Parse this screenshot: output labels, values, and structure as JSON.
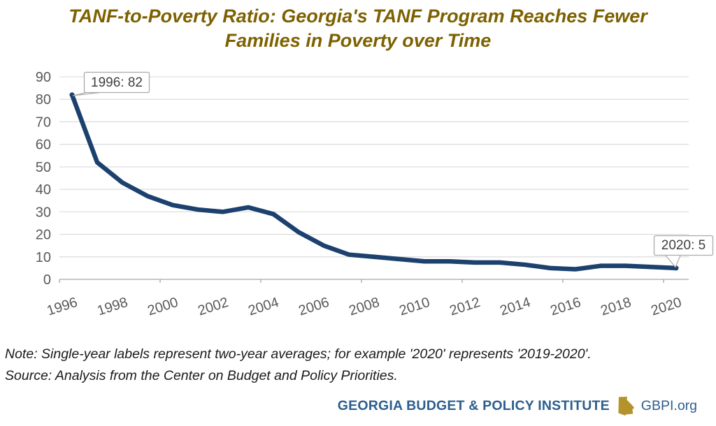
{
  "title": {
    "line1": "TANF-to-Poverty Ratio: Georgia's TANF Program Reaches Fewer",
    "line2": "Families in Poverty over Time"
  },
  "chart_data": {
    "type": "line",
    "title": "TANF-to-Poverty Ratio: Georgia's TANF Program Reaches Fewer Families in Poverty over Time",
    "series_name": "TANF-to-Poverty Ratio (Georgia)",
    "x": [
      1996,
      1997,
      1998,
      1999,
      2000,
      2001,
      2002,
      2003,
      2004,
      2005,
      2006,
      2007,
      2008,
      2009,
      2010,
      2011,
      2012,
      2013,
      2014,
      2015,
      2016,
      2017,
      2018,
      2019,
      2020
    ],
    "values": [
      82,
      52,
      43,
      37,
      33,
      31,
      30,
      32,
      29,
      21,
      15,
      11,
      10,
      9,
      8,
      8,
      7.5,
      7.5,
      6.5,
      5,
      4.5,
      6,
      6,
      5.5,
      5
    ],
    "x_tick_labels": [
      "1996",
      "1998",
      "2000",
      "2002",
      "2004",
      "2006",
      "2008",
      "2010",
      "2012",
      "2014",
      "2016",
      "2018",
      "2020"
    ],
    "y_ticks": [
      0,
      10,
      20,
      30,
      40,
      50,
      60,
      70,
      80,
      90
    ],
    "ylim": [
      0,
      90
    ],
    "xlabel": "",
    "ylabel": "",
    "grid": true,
    "legend_position": "none",
    "line_color": "#1C416F",
    "annotations": [
      {
        "x": 1996,
        "y": 82,
        "label": "1996: 82"
      },
      {
        "x": 2020,
        "y": 5,
        "label": "2020: 5"
      }
    ]
  },
  "notes": {
    "note": "Note: Single-year labels represent two-year averages; for example '2020' represents '2019-2020'.",
    "source": "Source: Analysis from the Center on Budget and Policy Priorities."
  },
  "footer": {
    "org_name": "GEORGIA BUDGET & POLICY INSTITUTE",
    "site": "GBPI.org"
  },
  "colors": {
    "title_gold": "#7D6100",
    "line_navy": "#1C416F",
    "axis_text_gray": "#595959",
    "gridline_gray": "#D9D9D9",
    "axis_line_gray": "#A6A6A6",
    "callout_border": "#ABABAB",
    "callout_text": "#404040",
    "note_text": "#1A1A1A",
    "brand_blue": "#2C5E8E",
    "brand_gold": "#B4932C"
  }
}
